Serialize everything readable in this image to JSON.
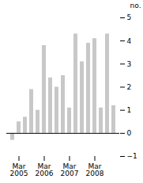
{
  "chart_data": {
    "type": "bar",
    "ylabel": "no.",
    "categories": [
      null,
      "Mar\n2005",
      null,
      null,
      null,
      "Mar\n2006",
      null,
      null,
      null,
      "Mar\n2007",
      null,
      null,
      null,
      "Mar\n2008",
      null,
      null,
      null
    ],
    "values": [
      -0.3,
      0.5,
      0.7,
      1.9,
      1.0,
      3.8,
      2.4,
      2.0,
      2.5,
      1.1,
      4.3,
      3.1,
      3.9,
      4.1,
      1.1,
      4.3,
      1.2
    ],
    "color": "#c8c8c8",
    "ylim": [
      -1,
      5
    ],
    "yticks": [
      -1,
      0,
      1,
      2,
      3,
      4,
      5
    ]
  }
}
